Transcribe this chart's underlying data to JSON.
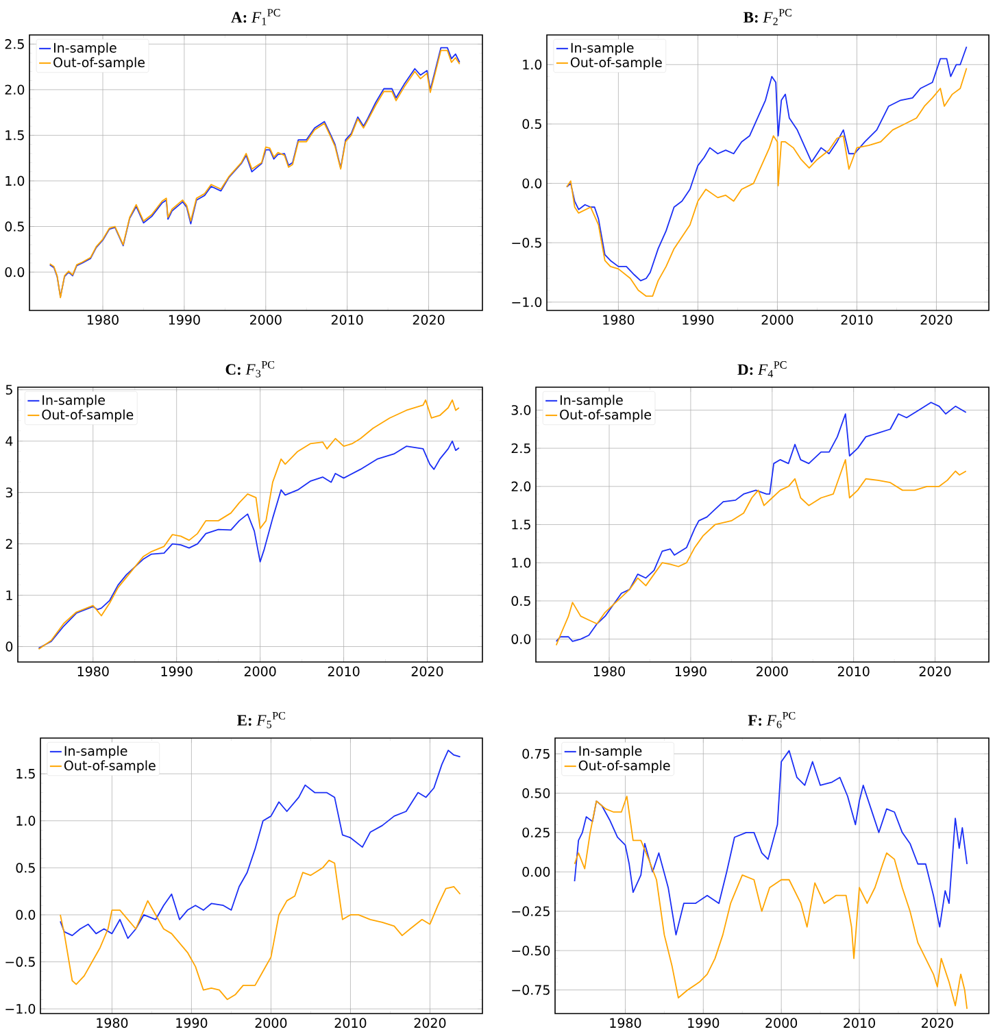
{
  "chart_data": [
    {
      "type": "line",
      "title": "**A:** *F*$_{1}$$^{PC}$",
      "xlim": [
        1971.0,
        2026.6
      ],
      "xticks": [
        1980,
        1990,
        2000,
        2010,
        2020
      ],
      "ylim": [
        -0.42,
        2.6
      ],
      "yticks": [
        {
          "value": 0,
          "label": "0.0"
        },
        {
          "value": 0.5,
          "label": "0.5"
        },
        {
          "value": 1,
          "label": "1.0"
        },
        {
          "value": 1.5,
          "label": "1.5"
        },
        {
          "value": 2,
          "label": "2.0"
        },
        {
          "value": 2.5,
          "label": "2.5"
        }
      ],
      "grid": true,
      "legend": "top left",
      "series": [
        {
          "name": "In-sample",
          "color": "#1a2ef5",
          "x": [
            1973.5,
            1974.0,
            1974.4,
            1974.8,
            1975.3,
            1975.8,
            1976.3,
            1976.8,
            1977.5,
            1978.5,
            1979.2,
            1980.0,
            1980.8,
            1981.5,
            1982.5,
            1983.3,
            1984.1,
            1985.0,
            1986.0,
            1987.3,
            1987.8,
            1988.0,
            1988.5,
            1989.8,
            1990.3,
            1990.8,
            1991.5,
            1992.5,
            1993.3,
            1994.5,
            1995.5,
            1997.0,
            1997.6,
            1998.3,
            1999.5,
            2000.0,
            2000.5,
            2001.0,
            2001.5,
            2002.3,
            2002.8,
            2003.3,
            2004.0,
            2005.0,
            2006.0,
            2007.2,
            2008.0,
            2008.5,
            2009.2,
            2009.8,
            2010.5,
            2011.3,
            2012.0,
            2012.5,
            2013.5,
            2014.5,
            2015.5,
            2016.0,
            2017.0,
            2018.3,
            2019.0,
            2019.8,
            2020.2,
            2020.8,
            2021.5,
            2022.3,
            2022.8,
            2023.3,
            2023.8
          ],
          "values": [
            0.08,
            0.05,
            -0.05,
            -0.27,
            -0.05,
            0.0,
            -0.04,
            0.07,
            0.1,
            0.15,
            0.27,
            0.35,
            0.47,
            0.49,
            0.29,
            0.59,
            0.72,
            0.54,
            0.61,
            0.76,
            0.79,
            0.58,
            0.67,
            0.77,
            0.71,
            0.53,
            0.79,
            0.84,
            0.94,
            0.89,
            1.04,
            1.19,
            1.28,
            1.1,
            1.19,
            1.34,
            1.34,
            1.24,
            1.29,
            1.3,
            1.17,
            1.2,
            1.45,
            1.45,
            1.58,
            1.65,
            1.5,
            1.4,
            1.14,
            1.45,
            1.52,
            1.7,
            1.6,
            1.68,
            1.86,
            2.01,
            2.01,
            1.91,
            2.06,
            2.23,
            2.16,
            2.21,
            2.0,
            2.21,
            2.46,
            2.46,
            2.34,
            2.39,
            2.3
          ]
        },
        {
          "name": "Out-of-sample",
          "color": "#ffa500",
          "x": [
            1973.5,
            1974.0,
            1974.4,
            1974.8,
            1975.3,
            1975.8,
            1976.3,
            1976.8,
            1977.5,
            1978.5,
            1979.2,
            1980.0,
            1980.8,
            1981.5,
            1982.5,
            1983.3,
            1984.1,
            1985.0,
            1986.0,
            1987.3,
            1987.8,
            1988.0,
            1988.5,
            1989.8,
            1990.3,
            1990.8,
            1991.5,
            1992.5,
            1993.3,
            1994.5,
            1995.5,
            1997.0,
            1997.6,
            1998.3,
            1999.5,
            2000.0,
            2000.5,
            2001.0,
            2001.5,
            2002.3,
            2002.8,
            2003.3,
            2004.0,
            2005.0,
            2006.0,
            2007.2,
            2008.0,
            2008.5,
            2009.2,
            2009.8,
            2010.5,
            2011.3,
            2012.0,
            2012.5,
            2013.5,
            2014.5,
            2015.5,
            2016.0,
            2017.0,
            2018.3,
            2019.0,
            2019.8,
            2020.2,
            2020.8,
            2021.5,
            2022.3,
            2022.8,
            2023.3,
            2023.8
          ],
          "values": [
            0.09,
            0.06,
            -0.04,
            -0.28,
            -0.04,
            0.01,
            -0.03,
            0.08,
            0.11,
            0.16,
            0.28,
            0.36,
            0.48,
            0.5,
            0.3,
            0.6,
            0.74,
            0.56,
            0.63,
            0.78,
            0.81,
            0.6,
            0.69,
            0.79,
            0.73,
            0.56,
            0.81,
            0.86,
            0.96,
            0.91,
            1.05,
            1.2,
            1.3,
            1.13,
            1.2,
            1.37,
            1.36,
            1.26,
            1.31,
            1.28,
            1.15,
            1.18,
            1.43,
            1.43,
            1.56,
            1.63,
            1.48,
            1.38,
            1.13,
            1.43,
            1.5,
            1.68,
            1.58,
            1.66,
            1.83,
            1.98,
            1.98,
            1.88,
            2.03,
            2.2,
            2.12,
            2.18,
            1.97,
            2.18,
            2.43,
            2.43,
            2.3,
            2.35,
            2.28
          ]
        }
      ]
    },
    {
      "type": "line",
      "title": "**B:** *F*$_{2}$$^{PC}$",
      "xlim": [
        1971.0,
        2026.6
      ],
      "xticks": [
        1980,
        1990,
        2000,
        2010,
        2020
      ],
      "ylim": [
        -1.07,
        1.25
      ],
      "yticks": [
        {
          "value": -1,
          "label": "−1.0"
        },
        {
          "value": -0.5,
          "label": "−0.5"
        },
        {
          "value": 0,
          "label": "0.0"
        },
        {
          "value": 0.5,
          "label": "0.5"
        },
        {
          "value": 1,
          "label": "1.0"
        }
      ],
      "grid": true,
      "legend": "top left",
      "series": [
        {
          "name": "In-sample",
          "color": "#1a2ef5",
          "x": [
            1973.5,
            1974.0,
            1974.5,
            1975.0,
            1975.8,
            1976.5,
            1977.0,
            1977.5,
            1978.3,
            1979.0,
            1980.0,
            1981.0,
            1982.0,
            1982.8,
            1983.5,
            1984.0,
            1985.0,
            1986.0,
            1987.0,
            1988.0,
            1989.0,
            1990.0,
            1990.8,
            1991.5,
            1992.5,
            1993.5,
            1994.5,
            1995.5,
            1996.5,
            1997.5,
            1998.5,
            1999.3,
            1999.8,
            2000.1,
            2000.5,
            2001.0,
            2001.5,
            2002.5,
            2003.5,
            2004.3,
            2005.5,
            2006.5,
            2007.5,
            2008.3,
            2009.0,
            2009.7,
            2011.0,
            2012.5,
            2014.0,
            2015.5,
            2017.0,
            2018.0,
            2019.5,
            2020.5,
            2021.3,
            2021.8,
            2022.5,
            2023.0,
            2023.8
          ],
          "values": [
            -0.03,
            0.0,
            -0.15,
            -0.22,
            -0.18,
            -0.2,
            -0.2,
            -0.3,
            -0.6,
            -0.65,
            -0.7,
            -0.7,
            -0.77,
            -0.82,
            -0.8,
            -0.75,
            -0.55,
            -0.4,
            -0.2,
            -0.15,
            -0.05,
            0.15,
            0.22,
            0.3,
            0.25,
            0.28,
            0.25,
            0.35,
            0.4,
            0.55,
            0.7,
            0.9,
            0.85,
            0.4,
            0.7,
            0.75,
            0.55,
            0.45,
            0.3,
            0.18,
            0.3,
            0.25,
            0.35,
            0.45,
            0.25,
            0.25,
            0.35,
            0.45,
            0.65,
            0.7,
            0.72,
            0.8,
            0.85,
            1.05,
            1.05,
            0.9,
            1.0,
            1.0,
            1.15
          ]
        },
        {
          "name": "Out-of-sample",
          "color": "#ffa500",
          "x": [
            1973.5,
            1974.0,
            1974.5,
            1975.0,
            1976.5,
            1977.5,
            1978.3,
            1979.0,
            1980.0,
            1981.5,
            1982.5,
            1983.5,
            1984.3,
            1985.0,
            1986.0,
            1987.0,
            1988.0,
            1989.0,
            1990.0,
            1991.0,
            1992.5,
            1993.5,
            1994.5,
            1995.5,
            1997.0,
            1998.0,
            1999.0,
            1999.5,
            2000.0,
            2000.1,
            2000.5,
            2001.0,
            2002.0,
            2003.0,
            2004.0,
            2005.0,
            2006.5,
            2007.5,
            2008.3,
            2009.0,
            2010.0,
            2011.5,
            2013.0,
            2014.5,
            2016.0,
            2017.5,
            2018.5,
            2019.5,
            2020.5,
            2021.0,
            2022.0,
            2023.0,
            2023.8
          ],
          "values": [
            -0.03,
            0.02,
            -0.2,
            -0.25,
            -0.2,
            -0.35,
            -0.65,
            -0.7,
            -0.72,
            -0.8,
            -0.9,
            -0.95,
            -0.95,
            -0.82,
            -0.7,
            -0.55,
            -0.45,
            -0.35,
            -0.15,
            -0.05,
            -0.12,
            -0.1,
            -0.15,
            -0.05,
            0.0,
            0.15,
            0.3,
            0.4,
            0.35,
            -0.02,
            0.35,
            0.35,
            0.3,
            0.2,
            0.13,
            0.2,
            0.28,
            0.38,
            0.4,
            0.12,
            0.3,
            0.32,
            0.35,
            0.45,
            0.5,
            0.55,
            0.65,
            0.72,
            0.8,
            0.65,
            0.75,
            0.8,
            0.97
          ]
        }
      ]
    },
    {
      "type": "line",
      "title": "**C:** *F*$_{3}$$^{PC}$",
      "xlim": [
        1971.0,
        2026.6
      ],
      "xticks": [
        1980,
        1990,
        2000,
        2010,
        2020
      ],
      "ylim": [
        -0.3,
        5.05
      ],
      "yticks": [
        0,
        1,
        2,
        3,
        4,
        5
      ],
      "grid": true,
      "legend": "top left",
      "series": [
        {
          "name": "In-sample",
          "color": "#1a2ef5",
          "x": [
            1973.5,
            1975.0,
            1976.5,
            1978.0,
            1980.0,
            1980.5,
            1981.0,
            1982.0,
            1983.0,
            1984.0,
            1985.0,
            1986.0,
            1987.0,
            1988.5,
            1989.5,
            1990.5,
            1991.5,
            1992.5,
            1993.5,
            1995.0,
            1996.5,
            1997.5,
            1998.5,
            1999.3,
            2000.0,
            2000.5,
            2001.5,
            2002.5,
            2003.0,
            2004.5,
            2006.0,
            2007.5,
            2008.5,
            2009.0,
            2010.0,
            2012.0,
            2014.0,
            2016.0,
            2017.5,
            2019.5,
            2020.3,
            2020.8,
            2021.5,
            2022.5,
            2023.0,
            2023.4,
            2023.8
          ],
          "values": [
            -0.03,
            0.1,
            0.4,
            0.65,
            0.78,
            0.72,
            0.75,
            0.9,
            1.2,
            1.4,
            1.55,
            1.7,
            1.8,
            1.82,
            2.0,
            1.98,
            1.92,
            2.0,
            2.2,
            2.28,
            2.27,
            2.45,
            2.58,
            2.25,
            1.65,
            1.9,
            2.5,
            3.05,
            2.95,
            3.05,
            3.22,
            3.3,
            3.2,
            3.37,
            3.28,
            3.45,
            3.65,
            3.75,
            3.9,
            3.85,
            3.55,
            3.45,
            3.65,
            3.85,
            4.0,
            3.82,
            3.87
          ]
        },
        {
          "name": "Out-of-sample",
          "color": "#ffa500",
          "x": [
            1973.5,
            1975.0,
            1976.5,
            1978.0,
            1980.0,
            1981.0,
            1982.0,
            1983.0,
            1984.0,
            1985.0,
            1986.0,
            1987.0,
            1988.5,
            1989.5,
            1990.5,
            1991.5,
            1992.5,
            1993.5,
            1995.0,
            1996.5,
            1997.5,
            1998.5,
            1999.5,
            2000.0,
            2000.7,
            2001.5,
            2002.5,
            2003.0,
            2004.5,
            2006.0,
            2007.5,
            2008.0,
            2009.0,
            2010.0,
            2011.0,
            2012.0,
            2013.5,
            2015.5,
            2017.5,
            2019.5,
            2019.8,
            2020.5,
            2021.5,
            2022.5,
            2023.0,
            2023.4,
            2023.8
          ],
          "values": [
            -0.05,
            0.12,
            0.45,
            0.67,
            0.8,
            0.6,
            0.85,
            1.15,
            1.35,
            1.55,
            1.75,
            1.85,
            1.95,
            2.18,
            2.15,
            2.07,
            2.2,
            2.45,
            2.45,
            2.6,
            2.8,
            2.97,
            2.9,
            2.3,
            2.45,
            3.2,
            3.65,
            3.55,
            3.8,
            3.95,
            3.98,
            3.85,
            4.05,
            3.9,
            3.95,
            4.05,
            4.25,
            4.45,
            4.6,
            4.7,
            4.8,
            4.45,
            4.5,
            4.65,
            4.8,
            4.6,
            4.65
          ]
        }
      ]
    },
    {
      "type": "line",
      "title": "**D:** *F*$_{4}$$^{PC}$",
      "xlim": [
        1971.0,
        2026.6
      ],
      "xticks": [
        1980,
        1990,
        2000,
        2010,
        2020
      ],
      "ylim": [
        -0.3,
        3.3
      ],
      "yticks": [
        {
          "value": 0,
          "label": "0.0"
        },
        {
          "value": 0.5,
          "label": "0.5"
        },
        {
          "value": 1,
          "label": "1.0"
        },
        {
          "value": 1.5,
          "label": "1.5"
        },
        {
          "value": 2,
          "label": "2.0"
        },
        {
          "value": 2.5,
          "label": "2.5"
        },
        {
          "value": 3,
          "label": "3.0"
        }
      ],
      "grid": true,
      "legend": "top left",
      "series": [
        {
          "name": "In-sample",
          "color": "#1a2ef5",
          "x": [
            1973.5,
            1974.0,
            1975.0,
            1975.5,
            1976.5,
            1977.5,
            1978.5,
            1979.5,
            1980.5,
            1981.5,
            1982.5,
            1983.5,
            1984.5,
            1985.5,
            1986.5,
            1987.5,
            1988.0,
            1989.5,
            1990.5,
            1991.0,
            1992.0,
            1993.0,
            1994.0,
            1995.5,
            1996.5,
            1998.0,
            1999.3,
            1999.7,
            2000.2,
            2001.0,
            2002.0,
            2002.8,
            2003.5,
            2004.5,
            2006.0,
            2007.0,
            2008.0,
            2009.0,
            2009.5,
            2010.5,
            2011.5,
            2013.0,
            2014.5,
            2015.5,
            2016.5,
            2018.0,
            2019.5,
            2020.5,
            2021.3,
            2022.5,
            2023.8
          ],
          "values": [
            -0.03,
            0.03,
            0.03,
            -0.03,
            0.0,
            0.05,
            0.2,
            0.3,
            0.45,
            0.6,
            0.65,
            0.85,
            0.8,
            0.9,
            1.15,
            1.18,
            1.1,
            1.2,
            1.45,
            1.55,
            1.6,
            1.7,
            1.8,
            1.82,
            1.9,
            1.95,
            1.9,
            1.9,
            2.3,
            2.35,
            2.3,
            2.55,
            2.35,
            2.3,
            2.45,
            2.45,
            2.65,
            2.95,
            2.4,
            2.5,
            2.65,
            2.7,
            2.75,
            2.95,
            2.9,
            3.0,
            3.1,
            3.05,
            2.95,
            3.05,
            2.97
          ]
        },
        {
          "name": "Out-of-sample",
          "color": "#ffa500",
          "x": [
            1973.5,
            1974.0,
            1975.0,
            1975.5,
            1976.5,
            1977.5,
            1978.5,
            1979.5,
            1980.5,
            1981.5,
            1982.5,
            1983.5,
            1984.5,
            1985.5,
            1986.5,
            1987.5,
            1988.5,
            1989.5,
            1990.5,
            1991.5,
            1993.0,
            1995.0,
            1996.5,
            1997.5,
            1998.3,
            1999.0,
            2000.0,
            2001.0,
            2002.0,
            2002.8,
            2003.5,
            2004.5,
            2006.0,
            2007.5,
            2008.5,
            2009.0,
            2009.5,
            2010.5,
            2011.5,
            2013.0,
            2014.5,
            2016.0,
            2017.5,
            2019.0,
            2020.5,
            2021.5,
            2022.5,
            2023.0,
            2023.8
          ],
          "values": [
            -0.08,
            0.05,
            0.3,
            0.48,
            0.3,
            0.25,
            0.2,
            0.35,
            0.45,
            0.55,
            0.65,
            0.8,
            0.7,
            0.85,
            1.0,
            0.98,
            0.95,
            1.0,
            1.2,
            1.35,
            1.5,
            1.55,
            1.65,
            1.85,
            1.95,
            1.75,
            1.85,
            1.95,
            2.0,
            2.1,
            1.85,
            1.75,
            1.85,
            1.9,
            2.2,
            2.35,
            1.85,
            1.95,
            2.1,
            2.08,
            2.05,
            1.95,
            1.95,
            2.0,
            2.0,
            2.08,
            2.2,
            2.15,
            2.2
          ]
        }
      ]
    },
    {
      "type": "line",
      "title": "**E:** *F*$_{5}$$^{PC}$",
      "xlim": [
        1971.0,
        2026.6
      ],
      "xticks": [
        1980,
        1990,
        2000,
        2010,
        2020
      ],
      "ylim": [
        -1.05,
        1.88
      ],
      "yticks": [
        {
          "value": -1,
          "label": "−1.0"
        },
        {
          "value": -0.5,
          "label": "−0.5"
        },
        {
          "value": 0,
          "label": "0.0"
        },
        {
          "value": 0.5,
          "label": "0.5"
        },
        {
          "value": 1,
          "label": "1.0"
        },
        {
          "value": 1.5,
          "label": "1.5"
        }
      ],
      "grid": true,
      "legend": "top left",
      "series": [
        {
          "name": "In-sample",
          "color": "#1a2ef5",
          "x": [
            1973.5,
            1974.0,
            1975.0,
            1976.0,
            1977.0,
            1978.0,
            1979.0,
            1980.0,
            1981.0,
            1982.0,
            1983.0,
            1984.0,
            1985.5,
            1986.5,
            1987.5,
            1988.5,
            1989.5,
            1990.5,
            1991.5,
            1992.5,
            1994.0,
            1995.0,
            1996.0,
            1997.0,
            1998.0,
            1999.0,
            2000.0,
            2001.0,
            2002.0,
            2003.5,
            2004.3,
            2005.5,
            2007.0,
            2008.0,
            2009.0,
            2010.0,
            2011.5,
            2012.5,
            2014.0,
            2015.5,
            2017.0,
            2018.5,
            2019.5,
            2020.5,
            2021.5,
            2022.3,
            2023.0,
            2023.8
          ],
          "values": [
            -0.07,
            -0.18,
            -0.22,
            -0.15,
            -0.1,
            -0.2,
            -0.15,
            -0.2,
            -0.05,
            -0.25,
            -0.15,
            0.0,
            -0.05,
            0.1,
            0.22,
            -0.05,
            0.05,
            0.1,
            0.05,
            0.12,
            0.1,
            0.05,
            0.3,
            0.45,
            0.7,
            1.0,
            1.05,
            1.2,
            1.1,
            1.25,
            1.38,
            1.3,
            1.3,
            1.25,
            0.85,
            0.82,
            0.72,
            0.88,
            0.95,
            1.05,
            1.1,
            1.3,
            1.25,
            1.35,
            1.6,
            1.75,
            1.7,
            1.68
          ]
        },
        {
          "name": "Out-of-sample",
          "color": "#ffa500",
          "x": [
            1973.5,
            1974.0,
            1975.0,
            1975.5,
            1976.5,
            1977.5,
            1978.5,
            1979.5,
            1980.0,
            1981.0,
            1982.0,
            1983.0,
            1984.0,
            1984.5,
            1985.5,
            1986.5,
            1987.5,
            1988.5,
            1989.5,
            1990.5,
            1991.5,
            1992.5,
            1993.5,
            1994.5,
            1995.5,
            1996.5,
            1998.0,
            1999.0,
            2000.0,
            2001.0,
            2002.0,
            2003.0,
            2004.0,
            2005.0,
            2006.5,
            2007.3,
            2008.0,
            2009.0,
            2010.0,
            2011.0,
            2012.5,
            2014.0,
            2015.5,
            2016.5,
            2017.5,
            2019.0,
            2020.0,
            2021.0,
            2022.0,
            2023.0,
            2023.8
          ],
          "values": [
            0.0,
            -0.2,
            -0.7,
            -0.74,
            -0.65,
            -0.5,
            -0.35,
            -0.15,
            0.05,
            0.05,
            -0.05,
            -0.15,
            0.05,
            0.15,
            0.0,
            -0.15,
            -0.2,
            -0.3,
            -0.4,
            -0.55,
            -0.8,
            -0.78,
            -0.8,
            -0.9,
            -0.85,
            -0.75,
            -0.75,
            -0.6,
            -0.45,
            0.0,
            0.15,
            0.2,
            0.45,
            0.42,
            0.5,
            0.58,
            0.55,
            -0.05,
            0.0,
            0.0,
            -0.05,
            -0.08,
            -0.12,
            -0.22,
            -0.15,
            -0.05,
            -0.1,
            0.1,
            0.28,
            0.3,
            0.22
          ]
        }
      ]
    },
    {
      "type": "line",
      "title": "**F:** *F*$_{6}$$^{PC}$",
      "xlim": [
        1971.0,
        2026.6
      ],
      "xticks": [
        1980,
        1990,
        2000,
        2010,
        2020
      ],
      "ylim": [
        -0.9,
        0.85
      ],
      "yticks": [
        {
          "value": -0.75,
          "label": "−0.75"
        },
        {
          "value": -0.5,
          "label": "−0.50"
        },
        {
          "value": -0.25,
          "label": "−0.25"
        },
        {
          "value": 0,
          "label": "0.00"
        },
        {
          "value": 0.25,
          "label": "0.25"
        },
        {
          "value": 0.5,
          "label": "0.50"
        },
        {
          "value": 0.75,
          "label": "0.75"
        }
      ],
      "grid": true,
      "legend": "top left",
      "series": [
        {
          "name": "In-sample",
          "color": "#1a2ef5",
          "x": [
            1973.5,
            1974.0,
            1974.5,
            1975.0,
            1975.8,
            1976.3,
            1977.0,
            1978.0,
            1979.0,
            1980.0,
            1980.5,
            1981.0,
            1982.0,
            1982.5,
            1983.5,
            1984.3,
            1985.5,
            1986.5,
            1987.5,
            1989.0,
            1990.5,
            1992.0,
            1993.0,
            1994.0,
            1995.5,
            1996.5,
            1997.5,
            1998.3,
            1999.5,
            2000.0,
            2001.0,
            2002.0,
            2003.0,
            2004.0,
            2005.0,
            2006.5,
            2007.5,
            2008.5,
            2009.5,
            2010.0,
            2010.5,
            2011.5,
            2012.5,
            2013.5,
            2014.5,
            2015.5,
            2016.5,
            2017.5,
            2018.5,
            2019.5,
            2020.3,
            2021.0,
            2021.5,
            2022.3,
            2022.8,
            2023.2,
            2023.8
          ],
          "values": [
            -0.06,
            0.2,
            0.25,
            0.35,
            0.32,
            0.45,
            0.42,
            0.33,
            0.22,
            0.17,
            0.05,
            -0.13,
            -0.02,
            0.18,
            0.0,
            0.12,
            -0.1,
            -0.4,
            -0.2,
            -0.2,
            -0.15,
            -0.2,
            0.0,
            0.22,
            0.25,
            0.25,
            0.12,
            0.08,
            0.3,
            0.7,
            0.77,
            0.6,
            0.55,
            0.7,
            0.55,
            0.57,
            0.6,
            0.48,
            0.3,
            0.45,
            0.55,
            0.4,
            0.25,
            0.4,
            0.38,
            0.25,
            0.18,
            0.05,
            0.05,
            -0.15,
            -0.35,
            -0.12,
            -0.2,
            0.34,
            0.15,
            0.28,
            0.05
          ]
        },
        {
          "name": "Out-of-sample",
          "color": "#ffa500",
          "x": [
            1973.5,
            1974.0,
            1974.8,
            1975.5,
            1976.3,
            1977.5,
            1978.5,
            1979.5,
            1980.2,
            1981.0,
            1982.0,
            1983.0,
            1984.0,
            1985.0,
            1986.0,
            1986.8,
            1988.0,
            1989.5,
            1990.5,
            1991.5,
            1992.5,
            1993.5,
            1995.0,
            1996.5,
            1997.5,
            1998.5,
            2000.0,
            2001.0,
            2002.5,
            2003.3,
            2004.3,
            2005.5,
            2007.0,
            2008.3,
            2009.0,
            2009.3,
            2010.0,
            2011.0,
            2012.0,
            2013.0,
            2013.5,
            2014.5,
            2015.5,
            2016.5,
            2017.5,
            2018.5,
            2019.5,
            2020.0,
            2020.5,
            2021.5,
            2022.3,
            2023.0,
            2023.5,
            2023.8
          ],
          "values": [
            0.05,
            0.12,
            0.02,
            0.25,
            0.45,
            0.4,
            0.38,
            0.38,
            0.48,
            0.2,
            0.2,
            0.08,
            -0.05,
            -0.4,
            -0.6,
            -0.8,
            -0.75,
            -0.7,
            -0.65,
            -0.55,
            -0.4,
            -0.2,
            -0.02,
            -0.05,
            -0.25,
            -0.1,
            -0.05,
            -0.05,
            -0.2,
            -0.35,
            -0.07,
            -0.2,
            -0.15,
            -0.15,
            -0.35,
            -0.55,
            -0.1,
            -0.2,
            -0.1,
            0.05,
            0.12,
            0.08,
            -0.1,
            -0.25,
            -0.45,
            -0.55,
            -0.65,
            -0.73,
            -0.55,
            -0.7,
            -0.85,
            -0.65,
            -0.75,
            -0.87
          ]
        }
      ]
    }
  ]
}
